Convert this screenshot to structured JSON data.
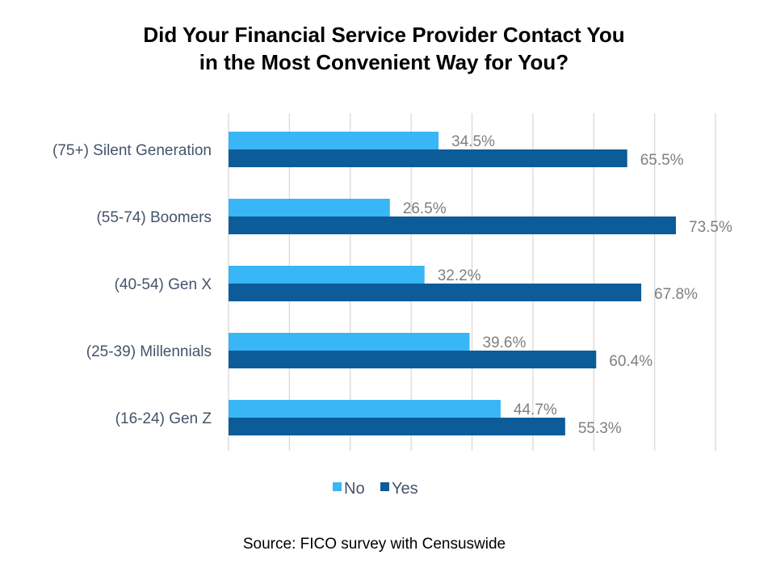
{
  "chart_data": {
    "type": "bar",
    "orientation": "horizontal",
    "title": "Did Your Financial Service Provider Contact You in the Most Convenient Way for You?",
    "title_lines": [
      "Did Your Financial Service Provider Contact You",
      "in the Most Convenient Way for You?"
    ],
    "categories": [
      "(75+) Silent Generation",
      "(55-74) Boomers",
      "(40-54) Gen X",
      "(25-39) Millennials",
      "(16-24) Gen Z"
    ],
    "series": [
      {
        "name": "No",
        "color": "#38b6f5",
        "values": [
          34.5,
          26.5,
          32.2,
          39.6,
          44.7
        ],
        "labels": [
          "34.5%",
          "26.5%",
          "32.2%",
          "39.6%",
          "44.7%"
        ]
      },
      {
        "name": "Yes",
        "color": "#0b5c98",
        "values": [
          65.5,
          73.5,
          67.8,
          60.4,
          55.3
        ],
        "labels": [
          "65.5%",
          "73.5%",
          "67.8%",
          "60.4%",
          "55.3%"
        ]
      }
    ],
    "xlim": [
      0,
      80
    ],
    "grid": true,
    "x_tick_labels_shown": false,
    "legend": "bottom",
    "source": "Source: FICO survey with Censuswide"
  }
}
